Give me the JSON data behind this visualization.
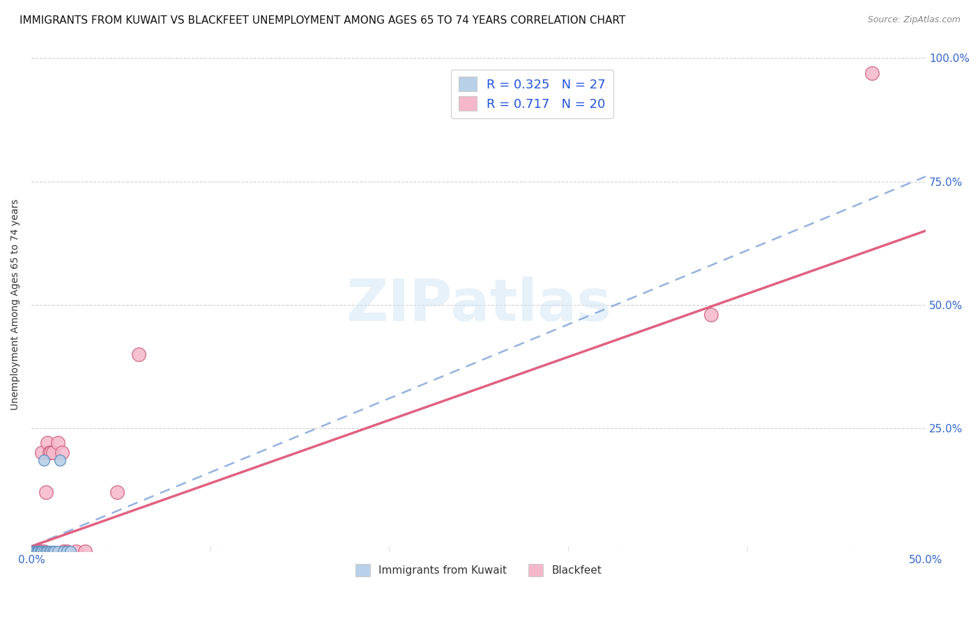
{
  "title": "IMMIGRANTS FROM KUWAIT VS BLACKFEET UNEMPLOYMENT AMONG AGES 65 TO 74 YEARS CORRELATION CHART",
  "source": "Source: ZipAtlas.com",
  "ylabel": "Unemployment Among Ages 65 to 74 years",
  "xlim": [
    0,
    0.5
  ],
  "ylim": [
    0,
    1.0
  ],
  "xticks": [
    0.0,
    0.1,
    0.2,
    0.3,
    0.4,
    0.5
  ],
  "xtick_labels": [
    "0.0%",
    "",
    "",
    "",
    "",
    "50.0%"
  ],
  "yticks": [
    0.0,
    0.25,
    0.5,
    0.75,
    1.0
  ],
  "ytick_labels": [
    "",
    "25.0%",
    "50.0%",
    "75.0%",
    "100.0%"
  ],
  "legend_series": [
    {
      "label": "R = 0.325   N = 27",
      "color": "#b8d0e8"
    },
    {
      "label": "R = 0.717   N = 20",
      "color": "#f5b8ca"
    }
  ],
  "legend_bottom": [
    {
      "label": "Immigrants from Kuwait",
      "color": "#b8d0e8"
    },
    {
      "label": "Blackfeet",
      "color": "#f5b8ca"
    }
  ],
  "blue_scatter_x": [
    0.001,
    0.002,
    0.002,
    0.003,
    0.003,
    0.003,
    0.004,
    0.004,
    0.004,
    0.005,
    0.005,
    0.006,
    0.006,
    0.007,
    0.007,
    0.008,
    0.008,
    0.009,
    0.01,
    0.011,
    0.012,
    0.013,
    0.015,
    0.016,
    0.018,
    0.02,
    0.022
  ],
  "blue_scatter_y": [
    0.0,
    0.0,
    0.0,
    0.0,
    0.0,
    0.0,
    0.0,
    0.0,
    0.0,
    0.0,
    0.0,
    0.0,
    0.0,
    0.0,
    0.185,
    0.0,
    0.0,
    0.0,
    0.0,
    0.0,
    0.0,
    0.0,
    0.0,
    0.185,
    0.0,
    0.0,
    0.0
  ],
  "blue_color": "#b8d0e8",
  "blue_edgecolor": "#6090c0",
  "pink_scatter_x": [
    0.003,
    0.004,
    0.005,
    0.006,
    0.007,
    0.008,
    0.009,
    0.01,
    0.011,
    0.012,
    0.015,
    0.017,
    0.018,
    0.02,
    0.025,
    0.03,
    0.048,
    0.06,
    0.38,
    0.47
  ],
  "pink_scatter_y": [
    0.0,
    0.0,
    0.0,
    0.2,
    0.0,
    0.12,
    0.22,
    0.2,
    0.2,
    0.2,
    0.22,
    0.2,
    0.0,
    0.0,
    0.0,
    0.0,
    0.12,
    0.4,
    0.48,
    0.97
  ],
  "pink_color": "#f5b8ca",
  "pink_edgecolor": "#d06080",
  "blue_trend_x0": 0.0,
  "blue_trend_y0": 0.01,
  "blue_trend_x1": 0.5,
  "blue_trend_y1": 0.76,
  "blue_trend_color": "#88aadd",
  "pink_trend_x0": 0.0,
  "pink_trend_y0": 0.01,
  "pink_trend_x1": 0.5,
  "pink_trend_y1": 0.65,
  "pink_trend_color": "#e06080",
  "watermark_text": "ZIPatlas",
  "watermark_color": "#d0e4f5",
  "background_color": "#ffffff",
  "title_fontsize": 11,
  "source_fontsize": 9,
  "axis_color": "#333333",
  "tick_color": "#3366cc",
  "grid_color": "#d0d0d0"
}
